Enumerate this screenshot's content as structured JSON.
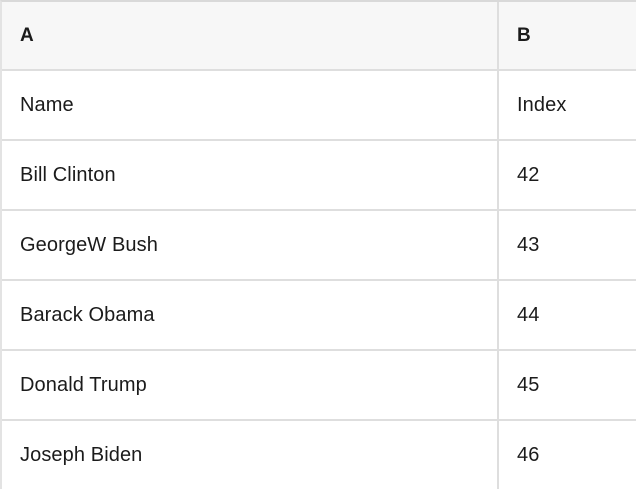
{
  "table": {
    "columns": [
      {
        "label": "A"
      },
      {
        "label": "B"
      }
    ],
    "rows": [
      {
        "a": "Name",
        "b": "Index"
      },
      {
        "a": "Bill Clinton",
        "b": "42"
      },
      {
        "a": "GeorgeW Bush",
        "b": "43"
      },
      {
        "a": "Barack Obama",
        "b": "44"
      },
      {
        "a": "Donald Trump",
        "b": "45"
      },
      {
        "a": "Joseph Biden",
        "b": "46"
      }
    ]
  },
  "colors": {
    "header_bg": "#f7f7f7",
    "row_bg": "#ffffff",
    "grid_line": "#dedede",
    "text": "#1b1b1b"
  }
}
